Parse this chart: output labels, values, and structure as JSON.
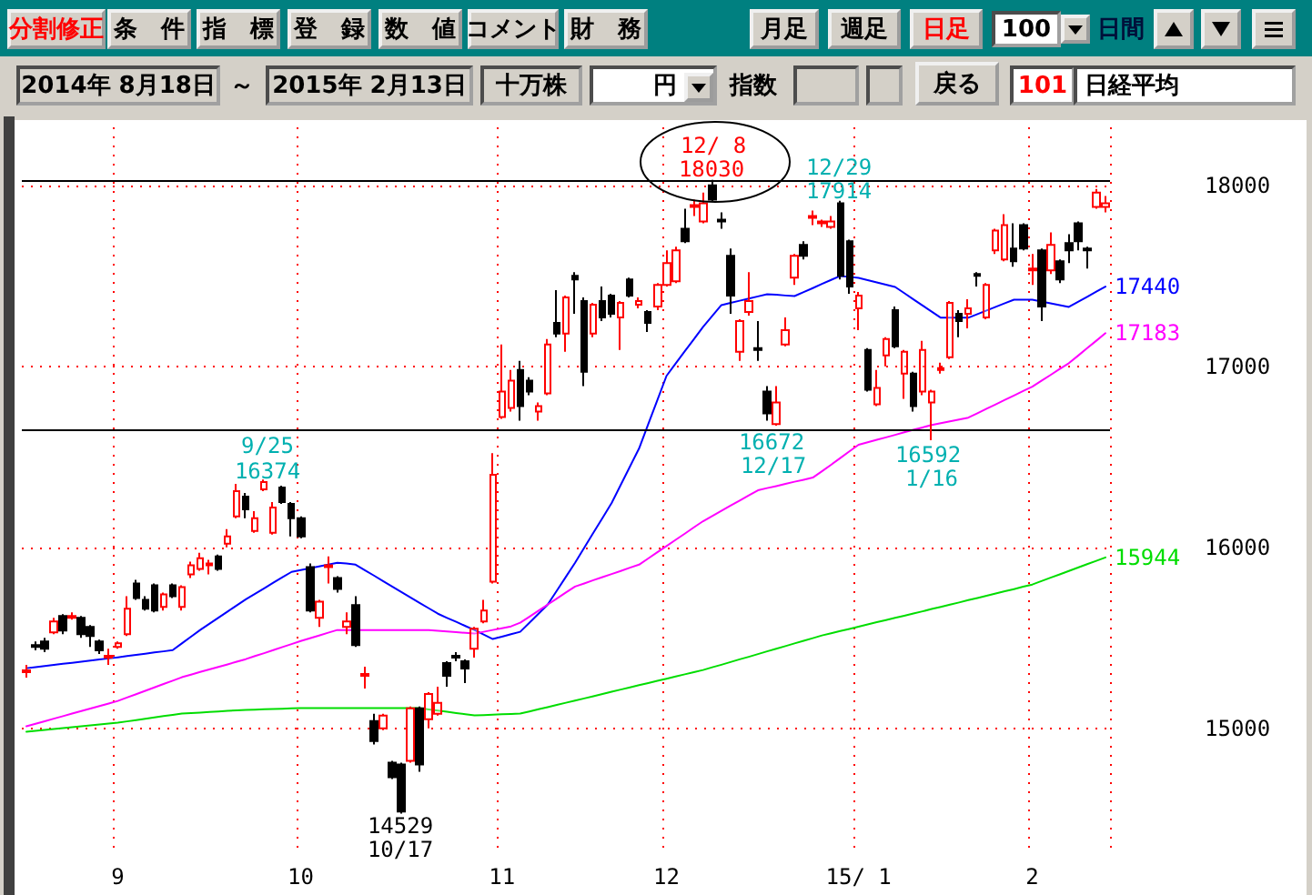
{
  "chart_data": {
    "type": "candlestick",
    "title": "日経平均",
    "categories": [
      null,
      null,
      null,
      null,
      null,
      null,
      null,
      null,
      null,
      null,
      "9",
      null,
      null,
      null,
      null,
      null,
      null,
      null,
      null,
      null,
      null,
      null,
      null,
      null,
      null,
      null,
      null,
      null,
      null,
      null,
      "10",
      null,
      null,
      null,
      null,
      null,
      null,
      null,
      null,
      null,
      null,
      null,
      null,
      null,
      null,
      null,
      null,
      null,
      null,
      null,
      null,
      null,
      "11",
      null,
      null,
      null,
      null,
      null,
      null,
      null,
      null,
      null,
      null,
      null,
      null,
      null,
      null,
      null,
      null,
      null,
      "12",
      null,
      null,
      null,
      null,
      null,
      null,
      null,
      null,
      null,
      null,
      null,
      null,
      null,
      null,
      null,
      null,
      null,
      null,
      null,
      null,
      "15/ 1",
      null,
      null,
      null,
      null,
      null,
      null,
      null,
      null,
      null,
      null,
      null,
      null,
      null,
      null,
      null,
      null,
      null,
      null,
      "2",
      null,
      null,
      null,
      null,
      null,
      null,
      null,
      null
    ],
    "ohlc": [
      [
        15310,
        15350,
        15280,
        15320
      ],
      [
        15460,
        15480,
        15430,
        15450
      ],
      [
        15480,
        15500,
        15420,
        15440
      ],
      [
        15530,
        15610,
        15520,
        15590
      ],
      [
        15620,
        15630,
        15520,
        15540
      ],
      [
        15610,
        15640,
        15600,
        15620
      ],
      [
        15610,
        15620,
        15500,
        15520
      ],
      [
        15560,
        15570,
        15450,
        15510
      ],
      [
        15480,
        15490,
        15410,
        15430
      ],
      [
        15390,
        15440,
        15350,
        15400
      ],
      [
        15450,
        15480,
        15440,
        15470
      ],
      [
        15520,
        15730,
        15510,
        15660
      ],
      [
        15800,
        15820,
        15710,
        15720
      ],
      [
        15710,
        15730,
        15650,
        15660
      ],
      [
        15790,
        15800,
        15640,
        15650
      ],
      [
        15670,
        15750,
        15650,
        15740
      ],
      [
        15790,
        15800,
        15720,
        15730
      ],
      [
        15670,
        15790,
        15650,
        15780
      ],
      [
        15850,
        15920,
        15830,
        15900
      ],
      [
        15880,
        15970,
        15870,
        15940
      ],
      [
        15900,
        15930,
        15850,
        15910
      ],
      [
        15950,
        15960,
        15870,
        15880
      ],
      [
        16020,
        16100,
        16000,
        16060
      ],
      [
        16170,
        16350,
        16160,
        16310
      ],
      [
        16280,
        16300,
        16160,
        16210
      ],
      [
        16090,
        16200,
        16080,
        16160
      ],
      [
        16320,
        16374,
        16310,
        16360
      ],
      [
        16080,
        16250,
        16070,
        16220
      ],
      [
        16330,
        16340,
        16240,
        16250
      ],
      [
        16240,
        16250,
        16060,
        16160
      ],
      [
        16160,
        16170,
        16050,
        16060
      ],
      [
        15890,
        15910,
        15640,
        15650
      ],
      [
        15610,
        15710,
        15560,
        15700
      ],
      [
        15890,
        15950,
        15800,
        15900
      ],
      [
        15830,
        15840,
        15750,
        15770
      ],
      [
        15560,
        15640,
        15520,
        15590
      ],
      [
        15680,
        15730,
        15450,
        15460
      ],
      [
        15290,
        15340,
        15220,
        15300
      ],
      [
        15040,
        15080,
        14910,
        14930
      ],
      [
        15000,
        15080,
        14990,
        15070
      ],
      [
        14810,
        14820,
        14720,
        14730
      ],
      [
        14800,
        14810,
        14529,
        14540
      ],
      [
        14820,
        15120,
        14810,
        15110
      ],
      [
        15110,
        15120,
        14760,
        14800
      ],
      [
        15050,
        15200,
        15000,
        15190
      ],
      [
        15080,
        15230,
        15070,
        15140
      ],
      [
        15360,
        15370,
        15230,
        15290
      ],
      [
        15400,
        15420,
        15370,
        15390
      ],
      [
        15370,
        15380,
        15250,
        15330
      ],
      [
        15440,
        15560,
        15390,
        15550
      ],
      [
        15590,
        15710,
        15580,
        15650
      ],
      [
        15810,
        16520,
        15800,
        16400
      ],
      [
        16720,
        17120,
        16710,
        16860
      ],
      [
        16770,
        16980,
        16750,
        16920
      ],
      [
        16980,
        17030,
        16700,
        16780
      ],
      [
        16920,
        16940,
        16840,
        16860
      ],
      [
        16750,
        16800,
        16700,
        16780
      ],
      [
        16850,
        17150,
        16840,
        17120
      ],
      [
        17240,
        17420,
        17160,
        17180
      ],
      [
        17180,
        17390,
        17080,
        17380
      ],
      [
        17500,
        17520,
        17290,
        17480
      ],
      [
        17360,
        17380,
        16890,
        16970
      ],
      [
        17180,
        17350,
        17160,
        17340
      ],
      [
        17360,
        17440,
        17250,
        17270
      ],
      [
        17390,
        17400,
        17270,
        17290
      ],
      [
        17270,
        17360,
        17090,
        17350
      ],
      [
        17480,
        17490,
        17380,
        17390
      ],
      [
        17340,
        17380,
        17320,
        17360
      ],
      [
        17300,
        17310,
        17190,
        17240
      ],
      [
        17330,
        17460,
        17310,
        17450
      ],
      [
        17450,
        17640,
        17440,
        17570
      ],
      [
        17470,
        17660,
        17460,
        17640
      ],
      [
        17760,
        17870,
        17680,
        17690
      ],
      [
        17880,
        17920,
        17830,
        17890
      ],
      [
        17800,
        17960,
        17790,
        17900
      ],
      [
        18000,
        18030,
        17910,
        17920
      ],
      [
        17810,
        17850,
        17760,
        17800
      ],
      [
        17610,
        17650,
        17290,
        17390
      ],
      [
        17080,
        17260,
        17030,
        17250
      ],
      [
        17300,
        17520,
        17280,
        17360
      ],
      [
        17100,
        17250,
        17030,
        17090
      ],
      [
        16860,
        16890,
        16700,
        16740
      ],
      [
        16680,
        16890,
        16672,
        16800
      ],
      [
        17120,
        17270,
        17110,
        17200
      ],
      [
        17490,
        17620,
        17450,
        17610
      ],
      [
        17670,
        17690,
        17590,
        17610
      ],
      [
        17820,
        17860,
        17780,
        17830
      ],
      [
        17790,
        17810,
        17770,
        17800
      ],
      [
        17770,
        17830,
        17760,
        17800
      ],
      [
        17900,
        17914,
        17480,
        17500
      ],
      [
        17690,
        17700,
        17400,
        17440
      ],
      [
        17320,
        17410,
        17200,
        17390
      ],
      [
        17090,
        17100,
        16860,
        16870
      ],
      [
        16790,
        16980,
        16780,
        16880
      ],
      [
        17060,
        17160,
        17000,
        17150
      ],
      [
        17310,
        17330,
        17100,
        17110
      ],
      [
        16960,
        17090,
        16820,
        17080
      ],
      [
        16960,
        16970,
        16750,
        16780
      ],
      [
        16860,
        17140,
        16840,
        17090
      ],
      [
        16800,
        16870,
        16592,
        16860
      ],
      [
        16980,
        17020,
        16960,
        16990
      ],
      [
        17050,
        17360,
        17040,
        17350
      ],
      [
        17290,
        17310,
        17160,
        17250
      ],
      [
        17290,
        17370,
        17210,
        17320
      ],
      [
        17510,
        17520,
        17440,
        17500
      ],
      [
        17270,
        17460,
        17260,
        17450
      ],
      [
        17640,
        17760,
        17620,
        17750
      ],
      [
        17590,
        17840,
        17580,
        17780
      ],
      [
        17650,
        17790,
        17550,
        17580
      ],
      [
        17780,
        17790,
        17640,
        17650
      ],
      [
        17530,
        17620,
        17450,
        17540
      ],
      [
        17640,
        17650,
        17250,
        17330
      ],
      [
        17530,
        17740,
        17510,
        17670
      ],
      [
        17580,
        17590,
        17460,
        17480
      ],
      [
        17680,
        17730,
        17570,
        17640
      ],
      [
        17790,
        17800,
        17640,
        17690
      ],
      [
        17650,
        17660,
        17540,
        17640
      ],
      [
        17880,
        17980,
        17870,
        17960
      ],
      [
        17880,
        17940,
        17850,
        17900
      ]
    ],
    "series": [
      {
        "type": "line",
        "color": "#0000ff",
        "values": [
          15332,
          15338,
          15344,
          15350,
          15356,
          15362,
          15368,
          15374,
          15380,
          15386,
          15392,
          15399,
          15405,
          15412,
          15419,
          15425,
          15432,
          15469,
          15506,
          15543,
          15577,
          15611,
          15645,
          15679,
          15713,
          15743,
          15773,
          15804,
          15834,
          15864,
          15874,
          15884,
          15894,
          15904,
          15914,
          15910,
          15904,
          15874,
          15844,
          15813,
          15783,
          15753,
          15723,
          15693,
          15663,
          15633,
          15610,
          15588,
          15565,
          15543,
          15518,
          15493,
          15506,
          15520,
          15533,
          15583,
          15633,
          15683,
          15760,
          15837,
          15914,
          15997,
          16080,
          16162,
          16245,
          16345,
          16446,
          16546,
          16680,
          16813,
          16947,
          17015,
          17083,
          17150,
          17218,
          17278,
          17338,
          17350,
          17362,
          17374,
          17386,
          17398,
          17395,
          17391,
          17388,
          17410,
          17432,
          17455,
          17477,
          17499,
          17494,
          17488,
          17476,
          17463,
          17451,
          17438,
          17404,
          17370,
          17336,
          17302,
          17268,
          17268,
          17268,
          17268,
          17288,
          17308,
          17328,
          17348,
          17368,
          17368,
          17368,
          17358,
          17348,
          17338,
          17328,
          17356,
          17384,
          17412,
          17440
        ],
        "value_labels": [
          null,
          null,
          null,
          null,
          null,
          null,
          null,
          null,
          null,
          null,
          null,
          null,
          null,
          null,
          null,
          null,
          null,
          null,
          null,
          null,
          null,
          null,
          null,
          null,
          null,
          null,
          null,
          null,
          null,
          null,
          null,
          null,
          null,
          null,
          null,
          null,
          null,
          null,
          null,
          null,
          null,
          null,
          null,
          null,
          null,
          null,
          null,
          null,
          null,
          null,
          null,
          null,
          null,
          null,
          null,
          null,
          null,
          null,
          null,
          null,
          null,
          null,
          null,
          null,
          null,
          null,
          null,
          null,
          null,
          null,
          null,
          null,
          null,
          null,
          null,
          null,
          null,
          null,
          null,
          null,
          null,
          null,
          null,
          null,
          null,
          null,
          null,
          null,
          null,
          null,
          null,
          null,
          null,
          null,
          null,
          null,
          null,
          null,
          null,
          null,
          null,
          null,
          null,
          null,
          null,
          null,
          null,
          null,
          null,
          null,
          null,
          null,
          null,
          null,
          null,
          null,
          null,
          null,
          "17440"
        ]
      },
      {
        "type": "line",
        "color": "#ff00ff",
        "values": [
          15011,
          15025,
          15039,
          15053,
          15067,
          15081,
          15095,
          15109,
          15123,
          15137,
          15151,
          15170,
          15188,
          15207,
          15226,
          15245,
          15263,
          15282,
          15296,
          15311,
          15325,
          15339,
          15353,
          15368,
          15382,
          15399,
          15415,
          15432,
          15449,
          15465,
          15482,
          15497,
          15512,
          15528,
          15543,
          15543,
          15543,
          15543,
          15543,
          15543,
          15543,
          15543,
          15543,
          15543,
          15543,
          15539,
          15535,
          15531,
          15527,
          15523,
          15533,
          15543,
          15553,
          15563,
          15583,
          15616,
          15650,
          15683,
          15716,
          15750,
          15783,
          15800,
          15818,
          15835,
          15852,
          15869,
          15887,
          15904,
          15938,
          15973,
          16007,
          16041,
          16075,
          16110,
          16144,
          16173,
          16201,
          16230,
          16258,
          16287,
          16315,
          16327,
          16338,
          16350,
          16362,
          16373,
          16385,
          16420,
          16456,
          16493,
          16530,
          16566,
          16580,
          16594,
          16607,
          16621,
          16635,
          16649,
          16662,
          16676,
          16686,
          16696,
          16706,
          16716,
          16740,
          16765,
          16789,
          16814,
          16838,
          16863,
          16887,
          16920,
          16952,
          16985,
          17017,
          17058,
          17100,
          17141,
          17183
        ],
        "value_labels": [
          null,
          null,
          null,
          null,
          null,
          null,
          null,
          null,
          null,
          null,
          null,
          null,
          null,
          null,
          null,
          null,
          null,
          null,
          null,
          null,
          null,
          null,
          null,
          null,
          null,
          null,
          null,
          null,
          null,
          null,
          null,
          null,
          null,
          null,
          null,
          null,
          null,
          null,
          null,
          null,
          null,
          null,
          null,
          null,
          null,
          null,
          null,
          null,
          null,
          null,
          null,
          null,
          null,
          null,
          null,
          null,
          null,
          null,
          null,
          null,
          null,
          null,
          null,
          null,
          null,
          null,
          null,
          null,
          null,
          null,
          null,
          null,
          null,
          null,
          null,
          null,
          null,
          null,
          null,
          null,
          null,
          null,
          null,
          null,
          null,
          null,
          null,
          null,
          null,
          null,
          null,
          null,
          null,
          null,
          null,
          null,
          null,
          null,
          null,
          null,
          null,
          null,
          null,
          null,
          null,
          null,
          null,
          null,
          null,
          null,
          null,
          null,
          null,
          null,
          null,
          null,
          null,
          null,
          "17183"
        ]
      },
      {
        "type": "line",
        "color": "#00dd00",
        "values": [
          14981,
          14986,
          14991,
          14996,
          15001,
          15006,
          15011,
          15016,
          15021,
          15026,
          15031,
          15038,
          15045,
          15052,
          15060,
          15067,
          15074,
          15081,
          15084,
          15087,
          15090,
          15093,
          15096,
          15099,
          15101,
          15103,
          15105,
          15107,
          15108,
          15110,
          15111,
          15111,
          15111,
          15111,
          15111,
          15111,
          15111,
          15111,
          15111,
          15111,
          15111,
          15111,
          15111,
          15111,
          15104,
          15098,
          15091,
          15084,
          15078,
          15071,
          15073,
          15075,
          15077,
          15079,
          15081,
          15093,
          15105,
          15117,
          15129,
          15141,
          15153,
          15165,
          15177,
          15189,
          15202,
          15214,
          15226,
          15238,
          15250,
          15262,
          15274,
          15286,
          15298,
          15310,
          15322,
          15337,
          15351,
          15366,
          15381,
          15395,
          15410,
          15425,
          15439,
          15454,
          15469,
          15483,
          15498,
          15513,
          15525,
          15537,
          15549,
          15561,
          15574,
          15586,
          15598,
          15610,
          15622,
          15634,
          15646,
          15659,
          15671,
          15683,
          15695,
          15708,
          15720,
          15732,
          15745,
          15757,
          15769,
          15782,
          15794,
          15813,
          15832,
          15850,
          15869,
          15888,
          15907,
          15925,
          15944
        ],
        "value_labels": [
          null,
          null,
          null,
          null,
          null,
          null,
          null,
          null,
          null,
          null,
          null,
          null,
          null,
          null,
          null,
          null,
          null,
          null,
          null,
          null,
          null,
          null,
          null,
          null,
          null,
          null,
          null,
          null,
          null,
          null,
          null,
          null,
          null,
          null,
          null,
          null,
          null,
          null,
          null,
          null,
          null,
          null,
          null,
          null,
          null,
          null,
          null,
          null,
          null,
          null,
          null,
          null,
          null,
          null,
          null,
          null,
          null,
          null,
          null,
          null,
          null,
          null,
          null,
          null,
          null,
          null,
          null,
          null,
          null,
          null,
          null,
          null,
          null,
          null,
          null,
          null,
          null,
          null,
          null,
          null,
          null,
          null,
          null,
          null,
          null,
          null,
          null,
          null,
          null,
          null,
          null,
          null,
          null,
          null,
          null,
          null,
          null,
          null,
          null,
          null,
          null,
          null,
          null,
          null,
          null,
          null,
          null,
          null,
          null,
          null,
          null,
          null,
          null,
          null,
          null,
          null,
          null,
          null,
          "15944"
        ]
      }
    ],
    "ylim": [
      14300,
      18320
    ],
    "yticks": [
      15000,
      16000,
      17000,
      18000
    ],
    "grid": true,
    "marker": "none",
    "ref_lines": [
      {
        "axis": "y",
        "value": 18030,
        "color": "#000000"
      },
      {
        "axis": "y",
        "value": 16650,
        "color": "#000000"
      }
    ],
    "annotations": [
      "12/ 8",
      "18030",
      "12/29",
      "17914",
      "9/25",
      "16374",
      "14529",
      "10/17",
      "16672",
      "12/17",
      "16592",
      "1/16",
      "分割修正",
      "条　件",
      "指　標",
      "登　録",
      "数　値",
      "コメント",
      "財　務",
      "月足",
      "週足",
      "日足",
      "100",
      "日間",
      "2014年 8月18日",
      "～",
      "2015年 2月13日",
      "十万株",
      "円",
      "指数",
      "戻る",
      "101"
    ]
  }
}
